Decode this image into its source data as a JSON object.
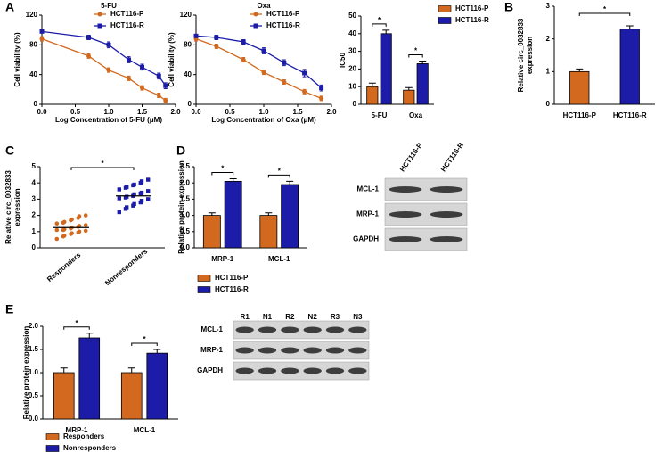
{
  "chart_data": [
    {
      "type": "line",
      "panel": "A",
      "title": "5-FU",
      "xlabel": "Log Concentration of 5-FU (μM)",
      "ylabel": "Cell viability (%)",
      "x": [
        0,
        0.7,
        1.0,
        1.3,
        1.5,
        1.75,
        1.85
      ],
      "series": [
        {
          "name": "HCT116-P",
          "color": "#d2691e",
          "values": [
            88,
            65,
            46,
            35,
            22,
            12,
            5
          ],
          "errors": [
            3,
            3,
            3,
            3,
            3,
            3,
            3
          ]
        },
        {
          "name": "HCT116-R",
          "color": "#1c1ca8",
          "values": [
            98,
            90,
            80,
            60,
            50,
            38,
            25
          ],
          "errors": [
            2,
            3,
            4,
            4,
            4,
            4,
            4
          ]
        }
      ],
      "xlim": [
        0,
        2
      ],
      "xticks": [
        {
          "value": 0,
          "label": "0.0"
        },
        {
          "value": 0.5,
          "label": "0.5"
        },
        {
          "value": 1,
          "label": "1.0"
        },
        {
          "value": 1.5,
          "label": "1.5"
        },
        {
          "value": 2,
          "label": "2.0"
        }
      ],
      "ylim": [
        0,
        120
      ],
      "yticks": [
        0,
        40,
        80,
        120
      ]
    },
    {
      "type": "line",
      "title": "Oxa",
      "xlabel": "Log Concentration of Oxa (μM)",
      "ylabel": "Cell viability (%)",
      "x": [
        0,
        0.3,
        0.7,
        1.0,
        1.3,
        1.6,
        1.85
      ],
      "series": [
        {
          "name": "HCT116-P",
          "color": "#d2691e",
          "values": [
            88,
            78,
            60,
            43,
            30,
            17,
            8
          ],
          "errors": [
            3,
            3,
            3,
            3,
            3,
            3,
            3
          ]
        },
        {
          "name": "HCT116-R",
          "color": "#1c1ca8",
          "values": [
            92,
            90,
            84,
            72,
            56,
            42,
            22
          ],
          "errors": [
            2,
            3,
            3,
            4,
            4,
            5,
            4
          ]
        }
      ],
      "xlim": [
        0,
        2
      ],
      "xticks": [
        {
          "value": 0,
          "label": "0.0"
        },
        {
          "value": 0.5,
          "label": "0.5"
        },
        {
          "value": 1,
          "label": "1.0"
        },
        {
          "value": 1.5,
          "label": "1.5"
        },
        {
          "value": 2,
          "label": "2.0"
        }
      ],
      "ylim": [
        0,
        120
      ],
      "yticks": [
        0,
        40,
        80,
        120
      ]
    },
    {
      "type": "bar",
      "ylabel": "IC50",
      "categories": [
        "5-FU",
        "Oxa"
      ],
      "series": [
        {
          "name": "HCT116-P",
          "color": "#d2691e",
          "values": [
            10,
            8
          ],
          "errors": [
            2,
            1.5
          ]
        },
        {
          "name": "HCT116-R",
          "color": "#1c1ca8",
          "values": [
            40,
            23
          ],
          "errors": [
            2,
            1.5
          ]
        }
      ],
      "ylim": [
        0,
        50
      ],
      "yticks": [
        0,
        10,
        20,
        30,
        40,
        50
      ],
      "annotations": [
        "*",
        "*"
      ]
    },
    {
      "type": "bar",
      "panel": "B",
      "ylabel": [
        "Relative circ_0032833",
        "expression"
      ],
      "categories": [
        "HCT116-P",
        "HCT116-R"
      ],
      "values": [
        1.0,
        2.3
      ],
      "errors": [
        0.08,
        0.1
      ],
      "colors": [
        "#d2691e",
        "#1c1ca8"
      ],
      "ylim": [
        0,
        3
      ],
      "yticks": [
        0,
        1,
        2,
        3
      ],
      "annotations": [
        "*"
      ]
    },
    {
      "type": "strip",
      "panel": "C",
      "ylabel": [
        "Relative circ_0032833",
        "expression"
      ],
      "categories": [
        "Responders",
        "Nonresponders"
      ],
      "values": [
        [
          0.55,
          0.7,
          0.75,
          0.85,
          0.9,
          0.95,
          1.0,
          1.05,
          1.1,
          1.1,
          1.15,
          1.2,
          1.25,
          1.3,
          1.35,
          1.4,
          1.5,
          1.55,
          1.6,
          1.7,
          1.75,
          1.85,
          1.95,
          2.0
        ],
        [
          2.2,
          2.4,
          2.5,
          2.6,
          2.7,
          2.8,
          2.9,
          3.0,
          3.05,
          3.1,
          3.15,
          3.2,
          3.3,
          3.35,
          3.4,
          3.5,
          3.6,
          3.7,
          3.75,
          3.85,
          3.9,
          4.0,
          4.1,
          4.2
        ]
      ],
      "means": [
        1.25,
        3.2
      ],
      "colors": [
        "#d2691e",
        "#1c1ca8"
      ],
      "ylim": [
        0,
        5
      ],
      "yticks": [
        0,
        1,
        2,
        3,
        4,
        5
      ],
      "annotations": [
        "*"
      ]
    },
    {
      "type": "bar",
      "panel": "D",
      "ylabel": "Relative protein expression",
      "categories": [
        "MRP-1",
        "MCL-1"
      ],
      "series": [
        {
          "name": "HCT116-P",
          "color": "#d2691e",
          "values": [
            1.0,
            1.0
          ],
          "errors": [
            0.08,
            0.08
          ]
        },
        {
          "name": "HCT116-R",
          "color": "#1c1ca8",
          "values": [
            2.05,
            1.95
          ],
          "errors": [
            0.08,
            0.1
          ]
        }
      ],
      "ylim": [
        0,
        2.5
      ],
      "yticks": [
        {
          "value": 0,
          "label": "0.0"
        },
        {
          "value": 0.5,
          "label": "0.5"
        },
        {
          "value": 1,
          "label": "1.0"
        },
        {
          "value": 1.5,
          "label": "1.5"
        },
        {
          "value": 2,
          "label": "2.0"
        },
        {
          "value": 2.5,
          "label": "2.5"
        }
      ],
      "annotations": [
        "*",
        "*"
      ]
    },
    {
      "type": "bar",
      "panel": "E",
      "ylabel": "Relative protein expression",
      "categories": [
        "MRP-1",
        "MCL-1"
      ],
      "series": [
        {
          "name": "Responders",
          "color": "#d2691e",
          "values": [
            1.0,
            1.0
          ],
          "errors": [
            0.1,
            0.1
          ]
        },
        {
          "name": "Nonresponders",
          "color": "#1c1ca8",
          "values": [
            1.75,
            1.42
          ],
          "errors": [
            0.1,
            0.08
          ]
        }
      ],
      "ylim": [
        0,
        2.0
      ],
      "yticks": [
        {
          "value": 0,
          "label": "0.0"
        },
        {
          "value": 0.5,
          "label": "0.5"
        },
        {
          "value": 1,
          "label": "1.0"
        },
        {
          "value": 1.5,
          "label": "1.5"
        },
        {
          "value": 2,
          "label": "2.0"
        }
      ],
      "annotations": [
        "*",
        "*"
      ]
    }
  ],
  "blots": [
    {
      "columns": [
        "HCT116-P",
        "HCT116-R"
      ],
      "rows": [
        "MCL-1",
        "MRP-1",
        "GAPDH"
      ]
    },
    {
      "columns": [
        "R1",
        "N1",
        "R2",
        "N2",
        "R3",
        "N3"
      ],
      "rows": [
        "MCL-1",
        "MRP-1",
        "GAPDH"
      ]
    }
  ]
}
